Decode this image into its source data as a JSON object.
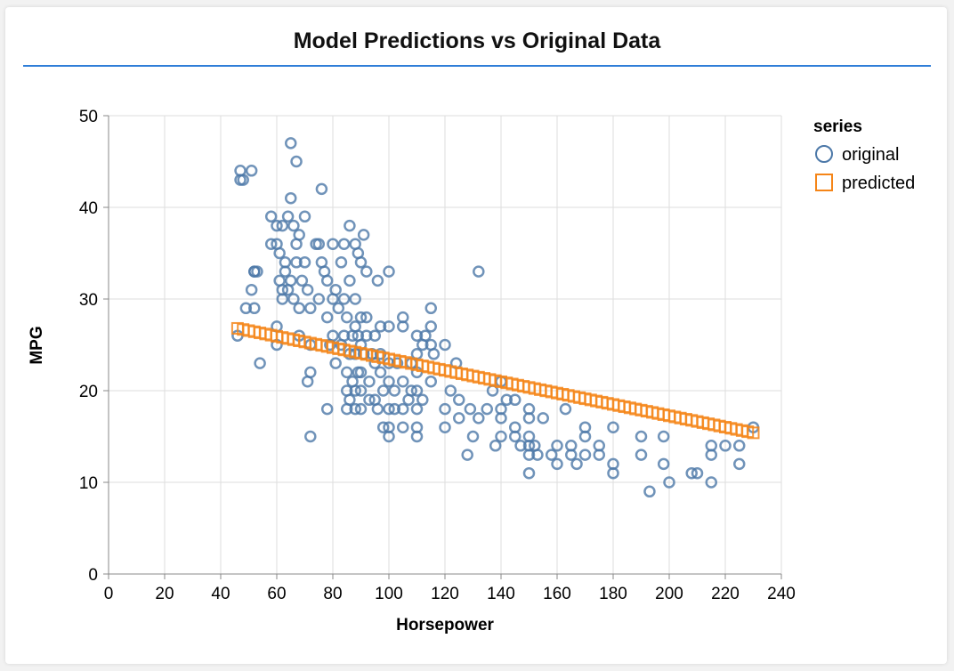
{
  "colors": {
    "original": "#4c78a8",
    "predicted": "#f58518",
    "grid": "#dddddd",
    "axis": "#888888",
    "accent_rule": "#2f7ed8"
  },
  "chart_data": {
    "type": "scatter",
    "title": "Model Predictions vs Original Data",
    "xlabel": "Horsepower",
    "ylabel": "MPG",
    "xlim": [
      0,
      240
    ],
    "ylim": [
      0,
      50
    ],
    "x_ticks": [
      0,
      20,
      40,
      60,
      80,
      100,
      120,
      140,
      160,
      180,
      200,
      220,
      240
    ],
    "y_ticks": [
      0,
      10,
      20,
      30,
      40,
      50
    ],
    "grid": true,
    "legend": {
      "title": "series",
      "placement": "right",
      "entries": [
        "original",
        "predicted"
      ]
    },
    "series": [
      {
        "name": "original",
        "marker": "circle",
        "points": [
          [
            46,
            26
          ],
          [
            47,
            44
          ],
          [
            47,
            43
          ],
          [
            48,
            43
          ],
          [
            51,
            44
          ],
          [
            49,
            29
          ],
          [
            52,
            33
          ],
          [
            53,
            33
          ],
          [
            51,
            31
          ],
          [
            52,
            29
          ],
          [
            54,
            23
          ],
          [
            52,
            33
          ],
          [
            58,
            39
          ],
          [
            60,
            38
          ],
          [
            58,
            36
          ],
          [
            60,
            36
          ],
          [
            62,
            38
          ],
          [
            63,
            34
          ],
          [
            64,
            39
          ],
          [
            65,
            47
          ],
          [
            65,
            41
          ],
          [
            66,
            38
          ],
          [
            67,
            45
          ],
          [
            67,
            36
          ],
          [
            68,
            37
          ],
          [
            70,
            39
          ],
          [
            61,
            35
          ],
          [
            63,
            33
          ],
          [
            64,
            31
          ],
          [
            62,
            30
          ],
          [
            60,
            27
          ],
          [
            60,
            25
          ],
          [
            61,
            32
          ],
          [
            62,
            31
          ],
          [
            65,
            32
          ],
          [
            66,
            30
          ],
          [
            67,
            34
          ],
          [
            68,
            29
          ],
          [
            69,
            32
          ],
          [
            70,
            34
          ],
          [
            68,
            26
          ],
          [
            71,
            31
          ],
          [
            72,
            29
          ],
          [
            72,
            25
          ],
          [
            72,
            22
          ],
          [
            71,
            21
          ],
          [
            72,
            15
          ],
          [
            74,
            36
          ],
          [
            75,
            36
          ],
          [
            75,
            30
          ],
          [
            76,
            34
          ],
          [
            76,
            42
          ],
          [
            77,
            33
          ],
          [
            78,
            32
          ],
          [
            78,
            28
          ],
          [
            78,
            18
          ],
          [
            79,
            25
          ],
          [
            80,
            36
          ],
          [
            80,
            30
          ],
          [
            80,
            26
          ],
          [
            81,
            23
          ],
          [
            81,
            31
          ],
          [
            82,
            29
          ],
          [
            83,
            34
          ],
          [
            83,
            25
          ],
          [
            84,
            36
          ],
          [
            84,
            30
          ],
          [
            84,
            26
          ],
          [
            85,
            28
          ],
          [
            85,
            22
          ],
          [
            85,
            20
          ],
          [
            85,
            18
          ],
          [
            86,
            38
          ],
          [
            86,
            32
          ],
          [
            86,
            24
          ],
          [
            86,
            19
          ],
          [
            87,
            26
          ],
          [
            87,
            21
          ],
          [
            88,
            36
          ],
          [
            88,
            30
          ],
          [
            88,
            27
          ],
          [
            88,
            24
          ],
          [
            88,
            20
          ],
          [
            88,
            18
          ],
          [
            89,
            35
          ],
          [
            89,
            26
          ],
          [
            89,
            22
          ],
          [
            90,
            34
          ],
          [
            90,
            28
          ],
          [
            90,
            25
          ],
          [
            90,
            22
          ],
          [
            90,
            20
          ],
          [
            90,
            18
          ],
          [
            91,
            37
          ],
          [
            91,
            24
          ],
          [
            92,
            33
          ],
          [
            92,
            28
          ],
          [
            92,
            26
          ],
          [
            93,
            21
          ],
          [
            93,
            19
          ],
          [
            94,
            24
          ],
          [
            95,
            23
          ],
          [
            95,
            26
          ],
          [
            95,
            19
          ],
          [
            96,
            32
          ],
          [
            96,
            18
          ],
          [
            97,
            27
          ],
          [
            97,
            24
          ],
          [
            97,
            22
          ],
          [
            98,
            20
          ],
          [
            98,
            16
          ],
          [
            100,
            33
          ],
          [
            100,
            27
          ],
          [
            100,
            23
          ],
          [
            100,
            21
          ],
          [
            100,
            18
          ],
          [
            100,
            16
          ],
          [
            100,
            15
          ],
          [
            102,
            20
          ],
          [
            102,
            18
          ],
          [
            103,
            23
          ],
          [
            105,
            28
          ],
          [
            105,
            27
          ],
          [
            105,
            21
          ],
          [
            105,
            18
          ],
          [
            105,
            16
          ],
          [
            107,
            19
          ],
          [
            108,
            23
          ],
          [
            108,
            20
          ],
          [
            110,
            26
          ],
          [
            110,
            24
          ],
          [
            110,
            22
          ],
          [
            110,
            20
          ],
          [
            110,
            18
          ],
          [
            110,
            16
          ],
          [
            110,
            15
          ],
          [
            112,
            25
          ],
          [
            112,
            19
          ],
          [
            113,
            26
          ],
          [
            115,
            29
          ],
          [
            115,
            27
          ],
          [
            115,
            25
          ],
          [
            115,
            21
          ],
          [
            116,
            24
          ],
          [
            120,
            25
          ],
          [
            120,
            18
          ],
          [
            120,
            16
          ],
          [
            122,
            20
          ],
          [
            124,
            23
          ],
          [
            125,
            17
          ],
          [
            125,
            19
          ],
          [
            128,
            13
          ],
          [
            129,
            18
          ],
          [
            130,
            15
          ],
          [
            132,
            33
          ],
          [
            132,
            17
          ],
          [
            135,
            18
          ],
          [
            137,
            20
          ],
          [
            138,
            14
          ],
          [
            140,
            21
          ],
          [
            140,
            18
          ],
          [
            140,
            17
          ],
          [
            140,
            15
          ],
          [
            142,
            19
          ],
          [
            145,
            19
          ],
          [
            145,
            16
          ],
          [
            145,
            15
          ],
          [
            147,
            14
          ],
          [
            150,
            18
          ],
          [
            150,
            17
          ],
          [
            150,
            15
          ],
          [
            150,
            14
          ],
          [
            150,
            13
          ],
          [
            150,
            11
          ],
          [
            152,
            14
          ],
          [
            153,
            13
          ],
          [
            155,
            17
          ],
          [
            158,
            13
          ],
          [
            160,
            14
          ],
          [
            160,
            12
          ],
          [
            163,
            18
          ],
          [
            165,
            14
          ],
          [
            165,
            13
          ],
          [
            167,
            12
          ],
          [
            170,
            16
          ],
          [
            170,
            15
          ],
          [
            170,
            13
          ],
          [
            175,
            14
          ],
          [
            175,
            13
          ],
          [
            180,
            16
          ],
          [
            180,
            12
          ],
          [
            180,
            11
          ],
          [
            190,
            15
          ],
          [
            190,
            13
          ],
          [
            193,
            9
          ],
          [
            198,
            15
          ],
          [
            198,
            12
          ],
          [
            200,
            10
          ],
          [
            208,
            11
          ],
          [
            210,
            11
          ],
          [
            215,
            14
          ],
          [
            215,
            13
          ],
          [
            215,
            10
          ],
          [
            220,
            14
          ],
          [
            225,
            14
          ],
          [
            225,
            12
          ],
          [
            230,
            16
          ]
        ]
      },
      {
        "name": "predicted",
        "marker": "square",
        "line": {
          "x_start": 46,
          "x_end": 230,
          "y_start": 26.8,
          "y_end": 15.4,
          "step": 2
        }
      }
    ]
  }
}
